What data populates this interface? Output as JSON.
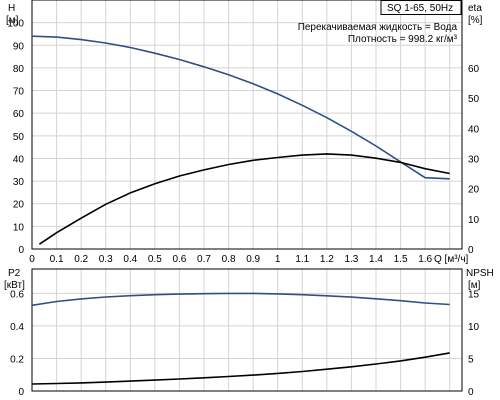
{
  "chart_data": [
    {
      "type": "line",
      "title_box": "SQ 1-65, 50Hz",
      "annotations": [
        "Перекачиваемая жидкость = Вода",
        "Плотность = 998.2 кг/м³"
      ],
      "xlabel": "Q [м³/ч]",
      "x_ticks": [
        "0",
        "0.1",
        "0.2",
        "0.3",
        "0.4",
        "0.5",
        "0.6",
        "0.7",
        "0.8",
        "0.9",
        "1",
        "1.1",
        "1.2",
        "1.3",
        "1.4",
        "1.5",
        "1.6"
      ],
      "xlim": [
        0,
        1.75
      ],
      "ylabel_left": "H",
      "ylabel_left_unit": "[м]",
      "ylim_left": [
        0,
        110
      ],
      "y_ticks_left": [
        "0",
        "10",
        "20",
        "30",
        "40",
        "50",
        "60",
        "70",
        "80",
        "90",
        "100"
      ],
      "ylabel_right": "eta",
      "ylabel_right_unit": "[%]",
      "ylim_right": [
        0,
        82.5
      ],
      "y_ticks_right": [
        "0",
        "10",
        "20",
        "30",
        "40",
        "50",
        "60"
      ],
      "grid": true,
      "series": [
        {
          "axis": "left",
          "color": "#2f4f86",
          "points": [
            [
              0,
              94
            ],
            [
              0.1,
              93.6
            ],
            [
              0.2,
              92.5
            ],
            [
              0.3,
              91
            ],
            [
              0.4,
              89
            ],
            [
              0.5,
              86.5
            ],
            [
              0.6,
              83.7
            ],
            [
              0.7,
              80.5
            ],
            [
              0.8,
              77
            ],
            [
              0.9,
              73
            ],
            [
              1.0,
              68.5
            ],
            [
              1.1,
              63.5
            ],
            [
              1.2,
              58
            ],
            [
              1.3,
              52
            ],
            [
              1.4,
              45.5
            ],
            [
              1.5,
              38.5
            ],
            [
              1.6,
              31.5
            ],
            [
              1.7,
              31
            ]
          ]
        },
        {
          "axis": "right",
          "color": "#000000",
          "points": [
            [
              0.03,
              1.6
            ],
            [
              0.1,
              5.4
            ],
            [
              0.2,
              10.2
            ],
            [
              0.3,
              14.8
            ],
            [
              0.4,
              18.6
            ],
            [
              0.5,
              21.6
            ],
            [
              0.6,
              24.2
            ],
            [
              0.7,
              26.2
            ],
            [
              0.8,
              28
            ],
            [
              0.9,
              29.4
            ],
            [
              1.0,
              30.3
            ],
            [
              1.1,
              31.1
            ],
            [
              1.2,
              31.5
            ],
            [
              1.3,
              31.1
            ],
            [
              1.4,
              30.1
            ],
            [
              1.5,
              28.7
            ],
            [
              1.6,
              26.6
            ],
            [
              1.7,
              25
            ]
          ]
        }
      ]
    },
    {
      "type": "line",
      "xlim": [
        0,
        1.75
      ],
      "ylabel_left": "P2",
      "ylabel_left_unit": "[кВт]",
      "ylim_left": [
        0,
        0.75
      ],
      "y_ticks_left": [
        "0",
        "0.2",
        "0.4",
        "0.6"
      ],
      "ylabel_right": "NPSH",
      "ylabel_right_unit": "[м]",
      "ylim_right": [
        0,
        18.75
      ],
      "y_ticks_right": [
        "0",
        "5",
        "10",
        "15"
      ],
      "grid": true,
      "series": [
        {
          "axis": "left",
          "color": "#2f4f86",
          "points": [
            [
              0,
              0.527
            ],
            [
              0.1,
              0.55
            ],
            [
              0.2,
              0.566
            ],
            [
              0.3,
              0.578
            ],
            [
              0.4,
              0.586
            ],
            [
              0.5,
              0.592
            ],
            [
              0.6,
              0.596
            ],
            [
              0.7,
              0.598
            ],
            [
              0.8,
              0.6
            ],
            [
              0.9,
              0.6
            ],
            [
              1.0,
              0.597
            ],
            [
              1.1,
              0.592
            ],
            [
              1.2,
              0.585
            ],
            [
              1.3,
              0.577
            ],
            [
              1.4,
              0.567
            ],
            [
              1.5,
              0.555
            ],
            [
              1.6,
              0.541
            ],
            [
              1.7,
              0.532
            ]
          ]
        },
        {
          "axis": "left",
          "color": "#000000",
          "points": [
            [
              0,
              0.043
            ],
            [
              0.1,
              0.046
            ],
            [
              0.2,
              0.05
            ],
            [
              0.3,
              0.055
            ],
            [
              0.4,
              0.061
            ],
            [
              0.5,
              0.067
            ],
            [
              0.6,
              0.074
            ],
            [
              0.7,
              0.081
            ],
            [
              0.8,
              0.089
            ],
            [
              0.9,
              0.098
            ],
            [
              1.0,
              0.108
            ],
            [
              1.1,
              0.12
            ],
            [
              1.2,
              0.134
            ],
            [
              1.3,
              0.149
            ],
            [
              1.4,
              0.166
            ],
            [
              1.5,
              0.185
            ],
            [
              1.6,
              0.208
            ],
            [
              1.7,
              0.234
            ]
          ]
        }
      ]
    }
  ]
}
